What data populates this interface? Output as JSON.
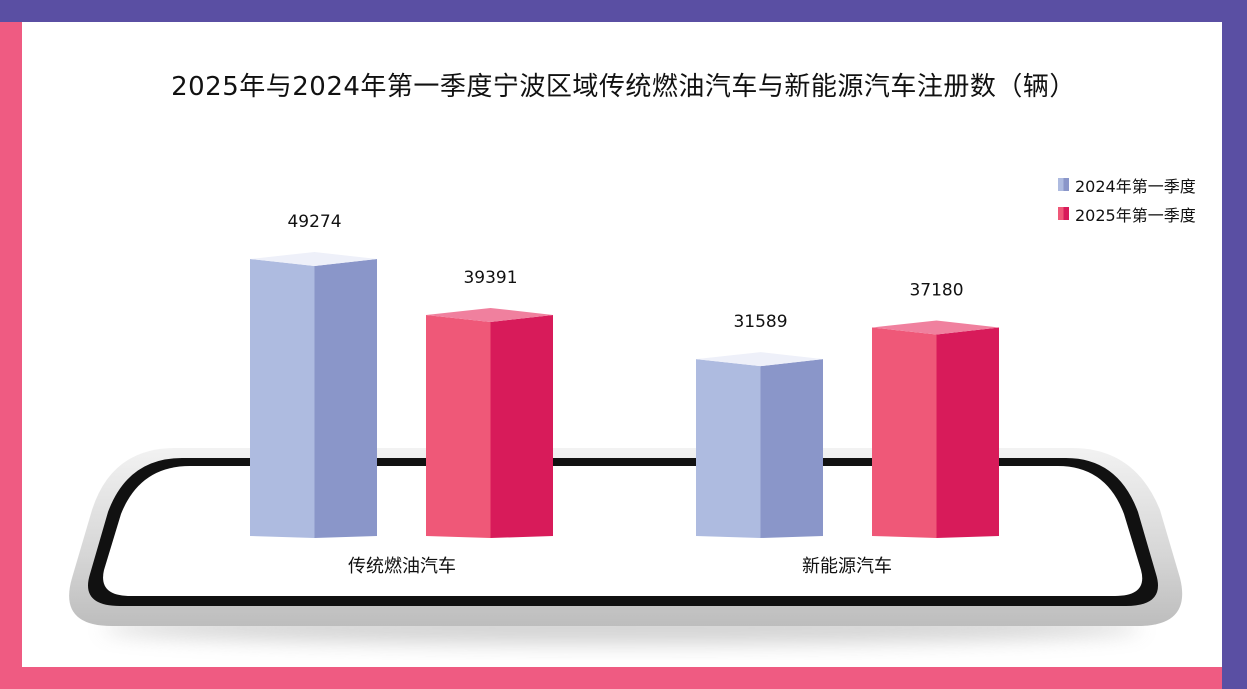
{
  "chart_data": {
    "type": "bar",
    "title": "2025年与2024年第一季度宁波区域传统燃油汽车与新能源汽车注册数（辆）",
    "categories": [
      "传统燃油汽车",
      "新能源汽车"
    ],
    "series": [
      {
        "name": "2024年第一季度",
        "values": [
          49274,
          31589
        ]
      },
      {
        "name": "2025年第一季度",
        "values": [
          39391,
          37180
        ]
      }
    ],
    "xlabel": "",
    "ylabel": "",
    "ylim": [
      0,
      55000
    ],
    "grid": false,
    "legend": "top-right",
    "style": "3d-columns"
  },
  "colors": {
    "series_2024": "#8a96c9",
    "series_2025": "#d81b5a",
    "frame_left_bottom": "#ef5b82",
    "frame_top_right": "#5a4fa3"
  }
}
